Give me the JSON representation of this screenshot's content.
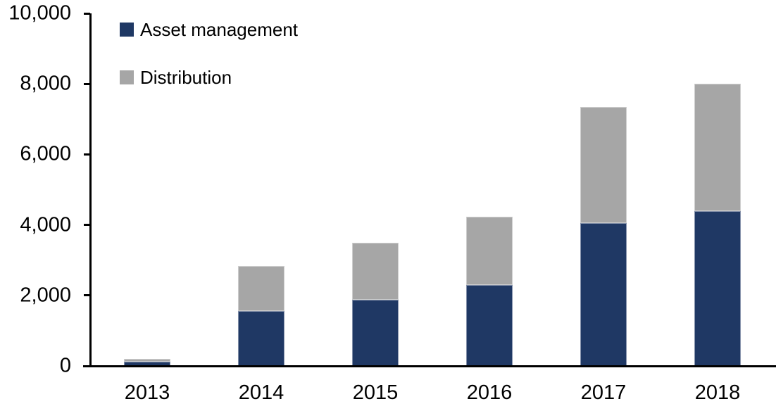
{
  "chart_data": {
    "type": "bar",
    "stacked": true,
    "title": "",
    "xlabel": "",
    "ylabel": "",
    "categories": [
      "2013",
      "2014",
      "2015",
      "2016",
      "2017",
      "2018"
    ],
    "series": [
      {
        "name": "Asset management",
        "color": "#1F3864",
        "values": [
          120,
          1550,
          1880,
          2300,
          4050,
          4400
        ]
      },
      {
        "name": "Distribution",
        "color": "#A6A6A6",
        "values": [
          80,
          1290,
          1620,
          1930,
          3300,
          3600
        ]
      }
    ],
    "totals": [
      200,
      2840,
      3500,
      4230,
      7350,
      8000
    ],
    "ylim": [
      0,
      10000
    ],
    "ytick_step": 2000,
    "ytick_labels": [
      "0",
      "2,000",
      "4,000",
      "6,000",
      "8,000",
      "10,000"
    ],
    "grid": false,
    "legend_position": "top-left",
    "axis_color": "#000000",
    "background_color": "#FFFFFF"
  }
}
